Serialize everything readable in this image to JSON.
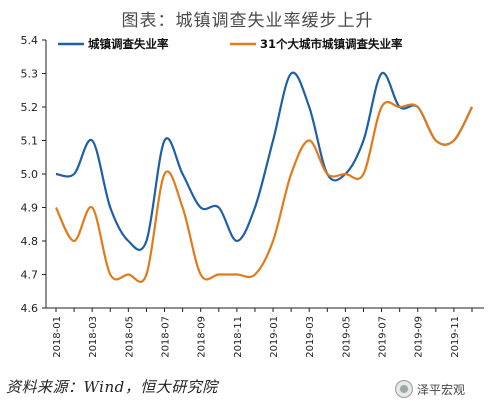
{
  "title": "图表：城镇调查失业率缓步上升",
  "source": "资料来源：Wind，恒大研究院",
  "watermark": "泽平宏观",
  "chart_data": {
    "type": "line",
    "title": "图表：城镇调查失业率缓步上升",
    "xlabel": "",
    "ylabel": "",
    "x": [
      "2018-01",
      "2018-02",
      "2018-03",
      "2018-04",
      "2018-05",
      "2018-06",
      "2018-07",
      "2018-08",
      "2018-09",
      "2018-10",
      "2018-11",
      "2018-12",
      "2019-01",
      "2019-02",
      "2019-03",
      "2019-04",
      "2019-05",
      "2019-06",
      "2019-07",
      "2019-08",
      "2019-09",
      "2019-10",
      "2019-11",
      "2019-12"
    ],
    "x_tick_labels": [
      "2018-01",
      "2018-03",
      "2018-05",
      "2018-07",
      "2018-09",
      "2018-11",
      "2019-01",
      "2019-03",
      "2019-05",
      "2019-07",
      "2019-09",
      "2019-11"
    ],
    "y_ticks": [
      "4.6",
      "4.7",
      "4.8",
      "4.9",
      "5.0",
      "5.1",
      "5.2",
      "5.3",
      "5.4"
    ],
    "ylim": [
      4.6,
      5.4
    ],
    "grid": false,
    "legend": "top",
    "series": [
      {
        "name": "城镇调查失业率",
        "color": "#1f5fa8",
        "values": [
          5.0,
          5.0,
          5.1,
          4.9,
          4.8,
          4.8,
          5.1,
          5.0,
          4.9,
          4.9,
          4.8,
          4.9,
          5.1,
          5.3,
          5.2,
          5.0,
          5.0,
          5.1,
          5.3,
          5.2,
          5.2,
          5.1,
          5.1,
          5.2
        ]
      },
      {
        "name": "31个大城市城镇调查失业率",
        "color": "#e07b1a",
        "values": [
          4.9,
          4.8,
          4.9,
          4.7,
          4.7,
          4.7,
          5.0,
          4.9,
          4.7,
          4.7,
          4.7,
          4.7,
          4.8,
          5.0,
          5.1,
          5.0,
          5.0,
          5.0,
          5.2,
          5.2,
          5.2,
          5.1,
          5.1,
          5.2
        ]
      }
    ]
  }
}
